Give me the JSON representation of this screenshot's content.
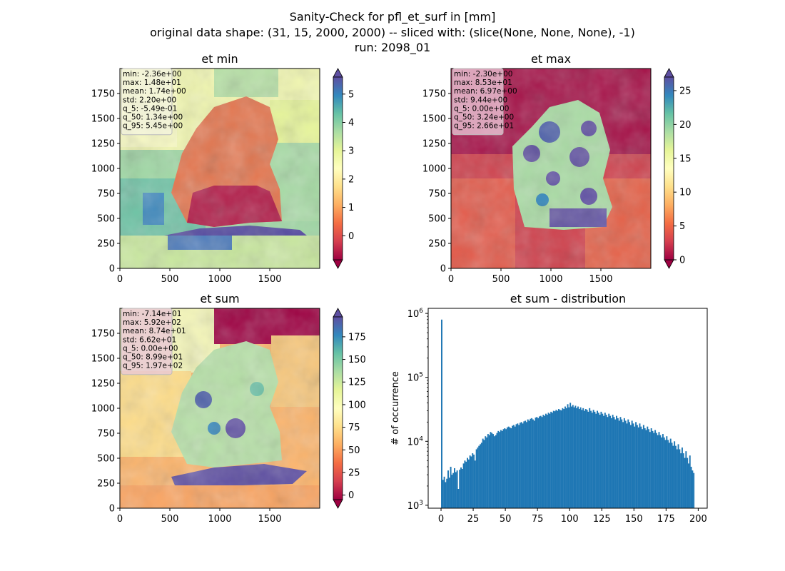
{
  "figure": {
    "title_lines": [
      "Sanity-Check for pfl_et_surf in [mm]",
      "original data shape: (31, 15, 2000, 2000) -- sliced with: (slice(None, None, None), -1)",
      "run: 2098_01"
    ]
  },
  "colors": {
    "spectral": [
      "#9e0142",
      "#d53e4f",
      "#f46d43",
      "#fdae61",
      "#fee08b",
      "#ffffbf",
      "#e6f598",
      "#abdda4",
      "#66c2a5",
      "#3288bd",
      "#5e4fa2"
    ],
    "hist_bar": "#1f77b4"
  },
  "chart_data": [
    {
      "type": "heatmap",
      "id": "et_min",
      "title": "et min",
      "x_ticks": [
        0,
        500,
        1000,
        1500
      ],
      "y_ticks": [
        0,
        250,
        500,
        750,
        1000,
        1250,
        1500,
        1750
      ],
      "xlim": [
        0,
        2000
      ],
      "ylim": [
        0,
        2000
      ],
      "colorbar": {
        "vmin": -0.85,
        "vmax": 5.6,
        "ticks": [
          0,
          1,
          2,
          3,
          4,
          5
        ],
        "extend": "both",
        "cmap": "Spectral"
      },
      "stats": [
        "min: -2.36e+00",
        "max: 1.48e+01",
        "mean: 1.74e+00",
        "std: 2.20e+00",
        "q_5: -5.49e-01",
        "q_50: 1.34e+00",
        "q_95: 5.45e+00"
      ]
    },
    {
      "type": "heatmap",
      "id": "et_max",
      "title": "et max",
      "x_ticks": [
        0,
        500,
        1000,
        1500
      ],
      "y_ticks": [
        0,
        250,
        500,
        750,
        1000,
        1250,
        1500,
        1750
      ],
      "xlim": [
        0,
        2000
      ],
      "ylim": [
        0,
        2000
      ],
      "colorbar": {
        "vmin": 0,
        "vmax": 27,
        "ticks": [
          0,
          5,
          10,
          15,
          20,
          25
        ],
        "extend": "both",
        "cmap": "Spectral"
      },
      "stats": [
        "min: -2.30e+00",
        "max: 8.53e+01",
        "mean: 6.97e+00",
        "std: 9.44e+00",
        "q_5: 0.00e+00",
        "q_50: 3.24e+00",
        "q_95: 2.66e+01"
      ]
    },
    {
      "type": "heatmap",
      "id": "et_sum",
      "title": "et sum",
      "x_ticks": [
        0,
        500,
        1000,
        1500
      ],
      "y_ticks": [
        0,
        250,
        500,
        750,
        1000,
        1250,
        1500,
        1750
      ],
      "xlim": [
        0,
        2000
      ],
      "ylim": [
        0,
        2000
      ],
      "colorbar": {
        "vmin": -5,
        "vmax": 197,
        "ticks": [
          0,
          25,
          50,
          75,
          100,
          125,
          150,
          175
        ],
        "extend": "both",
        "cmap": "Spectral"
      },
      "stats": [
        "min: -7.14e+01",
        "max: 5.92e+02",
        "mean: 8.74e+01",
        "std: 6.62e+01",
        "q_5: 0.00e+00",
        "q_50: 8.99e+01",
        "q_95: 1.97e+02"
      ]
    },
    {
      "type": "bar",
      "id": "et_sum_hist",
      "title": "et sum - distribution",
      "xlabel": "",
      "ylabel": "# of occurrence",
      "xlim": [
        -10,
        207
      ],
      "y_log": true,
      "ylim": [
        900,
        1200000
      ],
      "x_ticks": [
        0,
        25,
        50,
        75,
        100,
        125,
        150,
        175,
        200
      ],
      "y_ticks": [
        {
          "value": 1000,
          "base": "10",
          "exp": "3"
        },
        {
          "value": 10000,
          "base": "10",
          "exp": "4"
        },
        {
          "value": 100000,
          "base": "10",
          "exp": "5"
        },
        {
          "value": 1000000,
          "base": "10",
          "exp": "6"
        }
      ],
      "bin_width": 1,
      "x": [
        0,
        1,
        2,
        3,
        4,
        5,
        6,
        7,
        8,
        9,
        10,
        11,
        12,
        13,
        14,
        15,
        16,
        17,
        18,
        19,
        20,
        21,
        22,
        23,
        24,
        25,
        26,
        27,
        28,
        29,
        30,
        31,
        32,
        33,
        34,
        35,
        36,
        37,
        38,
        39,
        40,
        41,
        42,
        43,
        44,
        45,
        46,
        47,
        48,
        49,
        50,
        51,
        52,
        53,
        54,
        55,
        56,
        57,
        58,
        59,
        60,
        61,
        62,
        63,
        64,
        65,
        66,
        67,
        68,
        69,
        70,
        71,
        72,
        73,
        74,
        75,
        76,
        77,
        78,
        79,
        80,
        81,
        82,
        83,
        84,
        85,
        86,
        87,
        88,
        89,
        90,
        91,
        92,
        93,
        94,
        95,
        96,
        97,
        98,
        99,
        100,
        101,
        102,
        103,
        104,
        105,
        106,
        107,
        108,
        109,
        110,
        111,
        112,
        113,
        114,
        115,
        116,
        117,
        118,
        119,
        120,
        121,
        122,
        123,
        124,
        125,
        126,
        127,
        128,
        129,
        130,
        131,
        132,
        133,
        134,
        135,
        136,
        137,
        138,
        139,
        140,
        141,
        142,
        143,
        144,
        145,
        146,
        147,
        148,
        149,
        150,
        151,
        152,
        153,
        154,
        155,
        156,
        157,
        158,
        159,
        160,
        161,
        162,
        163,
        164,
        165,
        166,
        167,
        168,
        169,
        170,
        171,
        172,
        173,
        174,
        175,
        176,
        177,
        178,
        179,
        180,
        181,
        182,
        183,
        184,
        185,
        186,
        187,
        188,
        189,
        190,
        191,
        192,
        193,
        194,
        195,
        196
      ],
      "values": [
        800000,
        2500,
        2800,
        2300,
        2600,
        3500,
        2700,
        4000,
        3000,
        3200,
        3800,
        3300,
        3500,
        1800,
        3600,
        3900,
        3700,
        4500,
        5000,
        4800,
        5500,
        5200,
        6000,
        5800,
        6500,
        6200,
        5000,
        7500,
        8000,
        8500,
        9000,
        9500,
        11000,
        10500,
        12000,
        11500,
        13000,
        12500,
        14000,
        13500,
        13000,
        12000,
        12500,
        13500,
        14500,
        14000,
        15000,
        14500,
        15500,
        16000,
        15500,
        16500,
        17000,
        16500,
        16000,
        17500,
        18000,
        17000,
        18500,
        19000,
        18000,
        19500,
        20000,
        19000,
        20500,
        21000,
        20000,
        22000,
        21000,
        22500,
        23000,
        22000,
        21000,
        23500,
        24000,
        23000,
        24500,
        25000,
        24000,
        26000,
        25000,
        27000,
        26000,
        28000,
        27000,
        29000,
        28000,
        30000,
        29500,
        31000,
        30000,
        32000,
        31000,
        30500,
        33000,
        32000,
        35000,
        33000,
        38000,
        34000,
        40000,
        35000,
        37000,
        34000,
        36000,
        33000,
        35000,
        32000,
        34000,
        31000,
        33000,
        30000,
        32000,
        31000,
        29000,
        33000,
        30000,
        28000,
        31000,
        29000,
        27000,
        30000,
        28000,
        26000,
        29000,
        27000,
        25000,
        28000,
        26000,
        24000,
        27000,
        25000,
        23000,
        26000,
        24000,
        22000,
        25000,
        23000,
        21000,
        24000,
        22000,
        20000,
        23000,
        21000,
        19000,
        22000,
        20000,
        18000,
        21000,
        19000,
        17000,
        20000,
        18000,
        16500,
        19000,
        17000,
        15500,
        18000,
        16000,
        15000,
        17000,
        15500,
        14000,
        16000,
        14500,
        13500,
        15000,
        13500,
        12500,
        14000,
        12500,
        11500,
        13000,
        11500,
        10500,
        12000,
        10500,
        9500,
        11000,
        9500,
        8500,
        10000,
        8500,
        7500,
        9000,
        7500,
        6500,
        8000,
        6500,
        5500,
        7000,
        5500,
        4500,
        6000,
        4000,
        3500,
        3200
      ]
    }
  ]
}
